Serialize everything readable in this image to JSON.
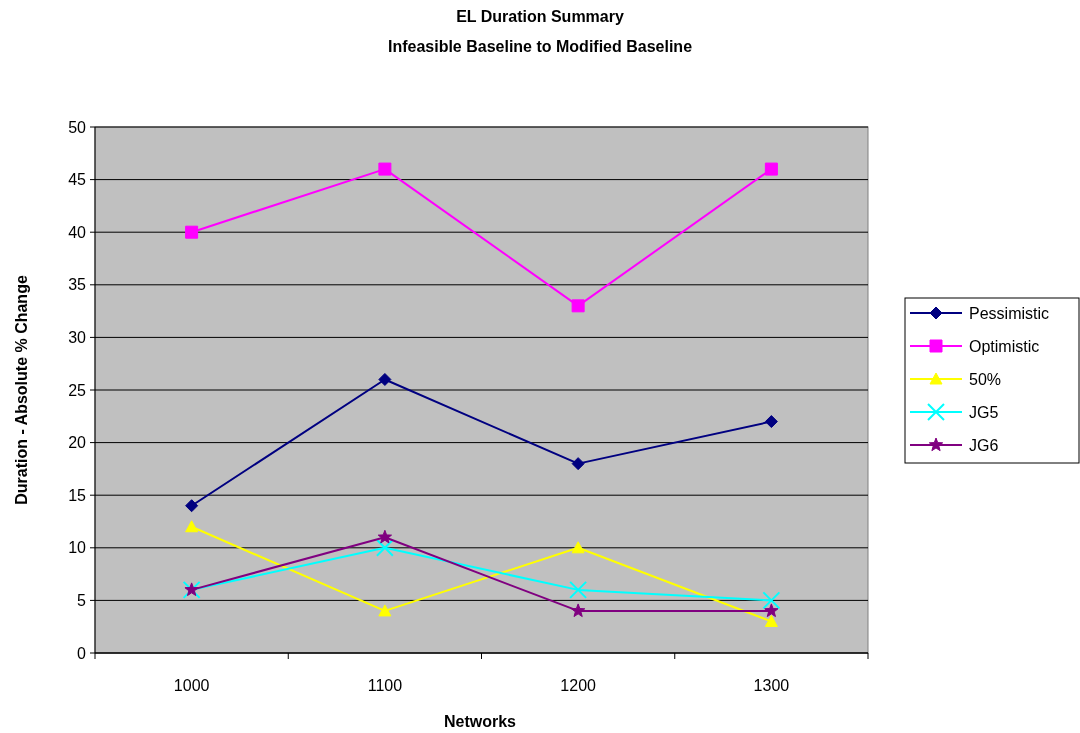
{
  "chart_data": {
    "type": "line",
    "title": "EL Duration Summary",
    "subtitle": "Infeasible Baseline to Modified Baseline",
    "xlabel": "Networks",
    "ylabel": "Duration - Absolute % Change",
    "categories": [
      "1000",
      "1100",
      "1200",
      "1300"
    ],
    "series": [
      {
        "name": "Pessimistic",
        "color": "#000080",
        "marker": "diamond",
        "values": [
          14,
          26,
          18,
          22
        ]
      },
      {
        "name": "Optimistic",
        "color": "#ff00ff",
        "marker": "square",
        "values": [
          40,
          46,
          33,
          46
        ]
      },
      {
        "name": "50%",
        "color": "#ffff00",
        "marker": "triangle",
        "values": [
          12,
          4,
          10,
          3
        ]
      },
      {
        "name": "JG5",
        "color": "#00ffff",
        "marker": "cross",
        "values": [
          6,
          10,
          6,
          5
        ]
      },
      {
        "name": "JG6",
        "color": "#800080",
        "marker": "star",
        "values": [
          6,
          11,
          4,
          4
        ]
      }
    ],
    "ylim": [
      0,
      50
    ],
    "yticks": [
      0,
      5,
      10,
      15,
      20,
      25,
      30,
      35,
      40,
      45,
      50
    ],
    "grid": "y",
    "legend": "right",
    "line_style": "solid"
  }
}
